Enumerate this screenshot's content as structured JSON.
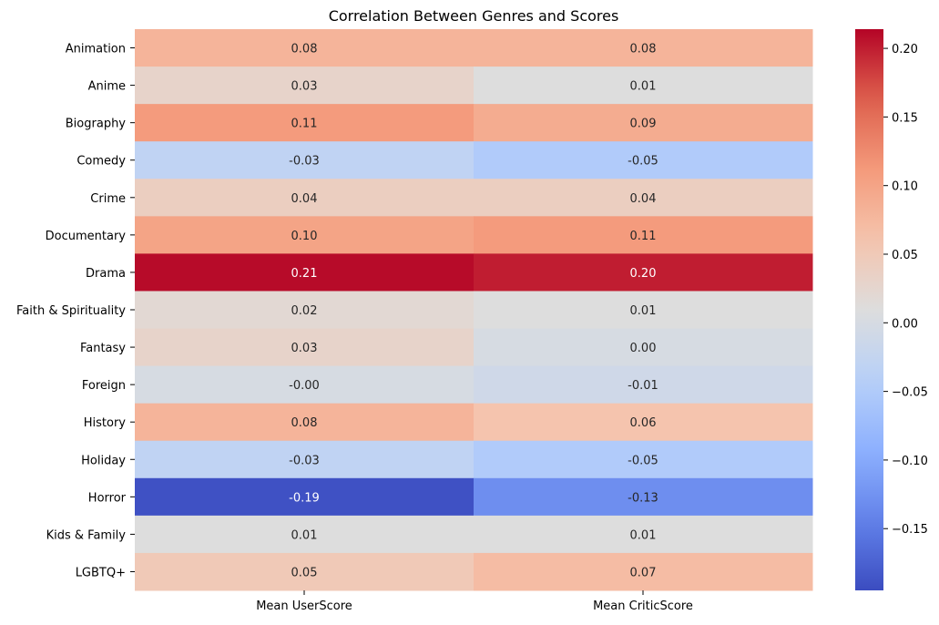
{
  "chart_data": {
    "type": "heatmap",
    "title": "Correlation Between Genres and Scores",
    "xlabel": "",
    "ylabel": "",
    "columns": [
      "Mean UserScore",
      "Mean CriticScore"
    ],
    "rows": [
      "Animation",
      "Anime",
      "Biography",
      "Comedy",
      "Crime",
      "Documentary",
      "Drama",
      "Faith & Spirituality",
      "Fantasy",
      "Foreign",
      "History",
      "Holiday",
      "Horror",
      "Kids & Family",
      "LGBTQ+"
    ],
    "values": [
      [
        0.08,
        0.08
      ],
      [
        0.03,
        0.01
      ],
      [
        0.11,
        0.09
      ],
      [
        -0.03,
        -0.05
      ],
      [
        0.04,
        0.04
      ],
      [
        0.1,
        0.11
      ],
      [
        0.21,
        0.2
      ],
      [
        0.02,
        0.01
      ],
      [
        0.03,
        0.0
      ],
      [
        -0.0,
        -0.01
      ],
      [
        0.08,
        0.06
      ],
      [
        -0.03,
        -0.05
      ],
      [
        -0.19,
        -0.13
      ],
      [
        0.01,
        0.01
      ],
      [
        0.05,
        0.07
      ]
    ],
    "cell_labels": [
      [
        "0.08",
        "0.08"
      ],
      [
        "0.03",
        "0.01"
      ],
      [
        "0.11",
        "0.09"
      ],
      [
        "-0.03",
        "-0.05"
      ],
      [
        "0.04",
        "0.04"
      ],
      [
        "0.10",
        "0.11"
      ],
      [
        "0.21",
        "0.20"
      ],
      [
        "0.02",
        "0.01"
      ],
      [
        "0.03",
        "0.00"
      ],
      [
        "-0.00",
        "-0.01"
      ],
      [
        "0.08",
        "0.06"
      ],
      [
        "-0.03",
        "-0.05"
      ],
      [
        "-0.19",
        "-0.13"
      ],
      [
        "0.01",
        "0.01"
      ],
      [
        "0.05",
        "0.07"
      ]
    ],
    "colormap": "coolwarm",
    "color_range": [
      -0.195,
      0.214
    ],
    "colorbar_ticks": [
      0.2,
      0.15,
      0.1,
      0.05,
      0.0,
      -0.05,
      -0.1,
      -0.15
    ],
    "colorbar_tick_labels": [
      "0.20",
      "0.15",
      "0.10",
      "0.05",
      "0.00",
      "−0.05",
      "−0.10",
      "−0.15"
    ],
    "grid": false,
    "legend": "colorbar right"
  }
}
